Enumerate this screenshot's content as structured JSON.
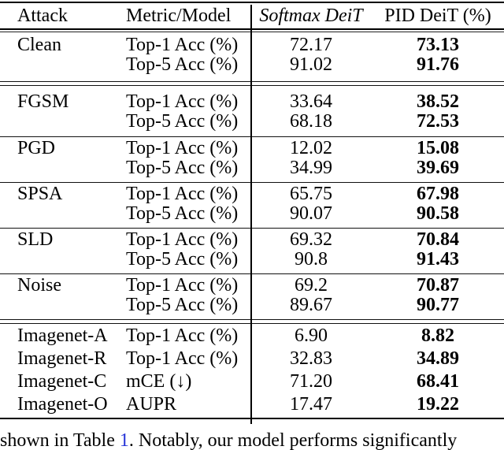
{
  "table": {
    "header": {
      "attack": "Attack",
      "metric": "Metric/Model",
      "softmax": "Softmax DeiT",
      "pid": "PID DeiT (%)"
    },
    "sections": [
      {
        "style": "first",
        "rule_after": "double",
        "rows": [
          {
            "attack": "Clean",
            "metric": "Top-1 Acc (%)",
            "softmax": "72.17",
            "pid": "73.13"
          },
          {
            "attack": "",
            "metric": "Top-5 Acc (%)",
            "softmax": "91.02",
            "pid": "91.76"
          }
        ]
      },
      {
        "style": "post-double",
        "rule_after": "single",
        "rows": [
          {
            "attack": "FGSM",
            "metric": "Top-1 Acc (%)",
            "softmax": "33.64",
            "pid": "38.52"
          },
          {
            "attack": "",
            "metric": "Top-5 Acc (%)",
            "softmax": "68.18",
            "pid": "72.53"
          }
        ]
      },
      {
        "style": "mid",
        "rule_after": "single",
        "rows": [
          {
            "attack": "PGD",
            "metric": "Top-1 Acc (%)",
            "softmax": "12.02",
            "pid": "15.08"
          },
          {
            "attack": "",
            "metric": "Top-5 Acc (%)",
            "softmax": "34.99",
            "pid": "39.69"
          }
        ]
      },
      {
        "style": "mid",
        "rule_after": "single",
        "rows": [
          {
            "attack": "SPSA",
            "metric": "Top-1 Acc (%)",
            "softmax": "65.75",
            "pid": "67.98"
          },
          {
            "attack": "",
            "metric": "Top-5 Acc (%)",
            "softmax": "90.07",
            "pid": "90.58"
          }
        ]
      },
      {
        "style": "mid",
        "rule_after": "single",
        "rows": [
          {
            "attack": "SLD",
            "metric": "Top-1 Acc (%)",
            "softmax": "69.32",
            "pid": "70.84"
          },
          {
            "attack": "",
            "metric": "Top-5 Acc (%)",
            "softmax": "90.8",
            "pid": "91.43"
          }
        ]
      },
      {
        "style": "mid",
        "rule_after": "double",
        "rows": [
          {
            "attack": "Noise",
            "metric": "Top-1 Acc (%)",
            "softmax": "69.2",
            "pid": "70.87"
          },
          {
            "attack": "",
            "metric": "Top-5 Acc (%)",
            "softmax": "89.67",
            "pid": "90.77"
          }
        ]
      },
      {
        "style": "imagenet",
        "rule_after": "none",
        "rows": [
          {
            "attack": "Imagenet-A",
            "metric": "Top-1 Acc (%)",
            "softmax": "6.90",
            "pid": "8.82"
          },
          {
            "attack": "Imagenet-R",
            "metric": "Top-1 Acc (%)",
            "softmax": "32.83",
            "pid": "34.89"
          },
          {
            "attack": "Imagenet-C",
            "metric": "mCE (↓)",
            "softmax": "71.20",
            "pid": "68.41"
          },
          {
            "attack": "Imagenet-O",
            "metric": "AUPR",
            "softmax": "17.47",
            "pid": "19.22"
          }
        ]
      }
    ]
  },
  "caption": {
    "pre": "shown in Table ",
    "link": "1",
    "post": ". Notably, our model performs significantly"
  },
  "colors": {
    "link_blue": "#2533d8",
    "rule_black": "#000000",
    "text_black": "#000000"
  }
}
